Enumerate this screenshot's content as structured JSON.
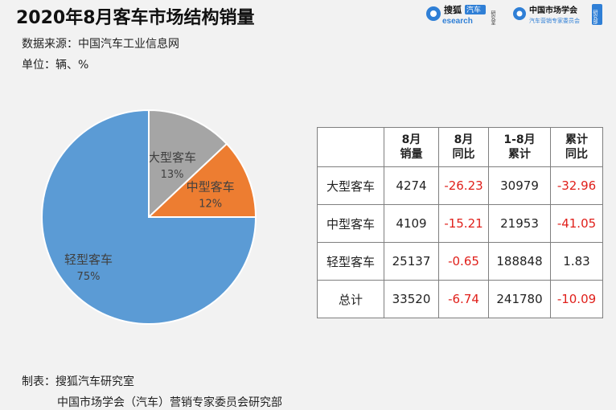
{
  "header": {
    "title": "2020年8月客车市场结构销量",
    "source": "数据来源：中国汽车工业信息网",
    "unit": "单位：辆、%"
  },
  "logos": {
    "sohu": {
      "main": "搜狐",
      "tag": "汽车",
      "sub": "esearch",
      "side": "研究室"
    },
    "cmsa": {
      "main": "中国市场学会",
      "sub": "汽车营销专家委员会",
      "side": "研究部"
    }
  },
  "chart_data": [
    {
      "type": "pie",
      "categories": [
        "大型客车",
        "中型客车",
        "轻型客车"
      ],
      "values": [
        13,
        12,
        75
      ],
      "labels": [
        "13%",
        "12%",
        "75%"
      ],
      "colors": [
        "#a5a5a5",
        "#ed7d31",
        "#5b9bd5"
      ]
    },
    {
      "type": "table",
      "columns": [
        [
          "8月",
          "销量"
        ],
        [
          "8月",
          "同比"
        ],
        [
          "1-8月",
          "累计"
        ],
        [
          "累计",
          "同比"
        ]
      ],
      "rows": [
        {
          "name": "大型客车",
          "values": [
            "4274",
            "-26.23",
            "30979",
            "-32.96"
          ]
        },
        {
          "name": "中型客车",
          "values": [
            "4109",
            "-15.21",
            "21953",
            "-41.05"
          ]
        },
        {
          "name": "轻型客车",
          "values": [
            "25137",
            "-0.65",
            "188848",
            "1.83"
          ]
        },
        {
          "name": "总计",
          "values": [
            "33520",
            "-6.74",
            "241780",
            "-10.09"
          ]
        }
      ]
    }
  ],
  "footer": {
    "line1": "制表：搜狐汽车研究室",
    "line2": "中国市场学会（汽车）营销专家委员会研究部"
  },
  "colors": {
    "negative": "#e0201b",
    "background": "#f2f2f2"
  }
}
